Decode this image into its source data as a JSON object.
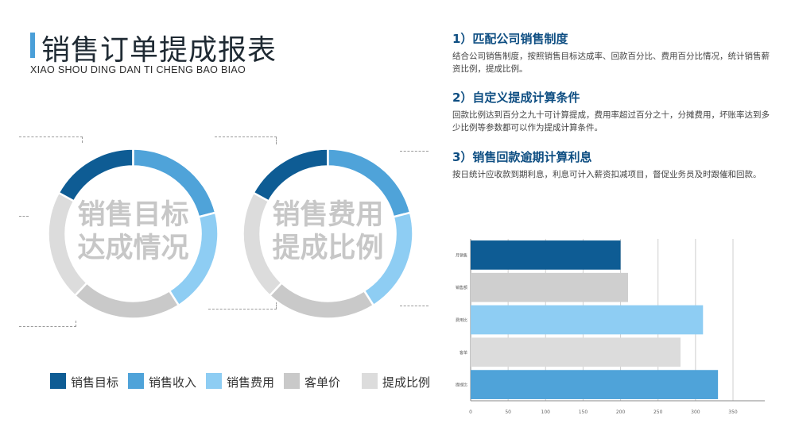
{
  "header": {
    "title": "销售订单提成报表",
    "subtitle": "XIAO SHOU DING DAN TI CHENG BAO BIAO"
  },
  "donuts": [
    {
      "label_line1": "销售目标",
      "label_line2": "达成情况"
    },
    {
      "label_line1": "销售费用",
      "label_line2": "提成比例"
    }
  ],
  "legend": [
    {
      "label": "销售目标",
      "color": "#0e5c94"
    },
    {
      "label": "销售收入",
      "color": "#4fa3d9"
    },
    {
      "label": "销售费用",
      "color": "#8ecdf3"
    },
    {
      "label": "客单价",
      "color": "#c9c9c9"
    },
    {
      "label": "提成比例",
      "color": "#dcdcdc"
    }
  ],
  "sections": [
    {
      "title": "1）匹配公司销售制度",
      "body": "结合公司销售制度，按照销售目标达成率、回款百分比、费用百分比情况，统计销售薪资比例，提成比例。"
    },
    {
      "title": "2）自定义提成计算条件",
      "body": "回款比例达到百分之九十可计算提成，费用率超过百分之十，分摊费用，坏账率达到多少比例等参数都可以作为提成计算条件。"
    },
    {
      "title": "3）销售回款逾期计算利息",
      "body": "按日统计应收款到期利息，利息可计入薪资扣减项目，督促业务员及时跟催和回款。"
    }
  ],
  "chart_data": [
    {
      "type": "pie",
      "chart": "donut-1",
      "categories": [
        "销售目标",
        "销售收入",
        "销售费用",
        "客单价",
        "提成比例"
      ],
      "values": [
        17,
        21,
        20,
        21,
        21
      ],
      "colors": [
        "#0e5c94",
        "#4fa3d9",
        "#8ecdf3",
        "#c9c9c9",
        "#dcdcdc"
      ]
    },
    {
      "type": "pie",
      "chart": "donut-2",
      "categories": [
        "销售目标",
        "销售收入",
        "销售费用",
        "客单价",
        "提成比例"
      ],
      "values": [
        17,
        21,
        20,
        21,
        21
      ],
      "colors": [
        "#0e5c94",
        "#4fa3d9",
        "#8ecdf3",
        "#c9c9c9",
        "#dcdcdc"
      ]
    },
    {
      "type": "bar",
      "orientation": "horizontal",
      "categories": [
        "月销售",
        "销售额",
        "费用比",
        "客单",
        "提成比"
      ],
      "values": [
        200,
        210,
        310,
        280,
        330
      ],
      "colors": [
        "#0e5c94",
        "#cfcfcf",
        "#8ecdf3",
        "#dcdcdc",
        "#4fa3d9"
      ],
      "xlim": [
        0,
        350
      ],
      "xticks": [
        "0",
        "50",
        "100",
        "150",
        "200",
        "250",
        "300",
        "350"
      ],
      "grid": true
    }
  ]
}
